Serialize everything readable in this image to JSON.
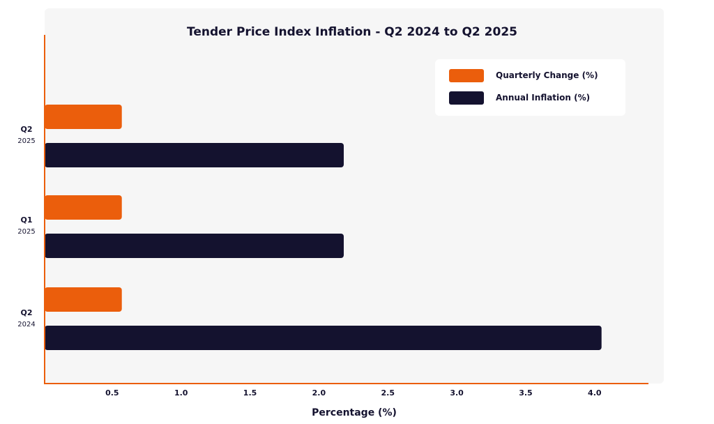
{
  "chart_data": {
    "type": "bar",
    "orientation": "horizontal",
    "title": "Tender Price Index Inflation - Q2 2024 to Q2 2025",
    "xlabel": "Percentage (%)",
    "ylabel": "",
    "xlim": [
      0,
      4.5
    ],
    "x_ticks": [
      "0.5",
      "1.0",
      "1.5",
      "2.0",
      "2.5",
      "3.0",
      "3.5",
      "4.0"
    ],
    "categories": [
      {
        "quarter": "Q2",
        "year": "2025"
      },
      {
        "quarter": "Q1",
        "year": "2025"
      },
      {
        "quarter": "Q2",
        "year": "2024"
      }
    ],
    "series": [
      {
        "name": "Quarterly Change (%)",
        "color": "#eb5e0c",
        "values": [
          0.56,
          0.56,
          0.56
        ]
      },
      {
        "name": "Annual Inflation (%)",
        "color": "#14122f",
        "values": [
          2.17,
          2.17,
          4.04
        ]
      }
    ],
    "legend_position": "top-right",
    "grid": false,
    "axis_color": "#eb5e0c",
    "panel_color": "#f6f6f6"
  }
}
